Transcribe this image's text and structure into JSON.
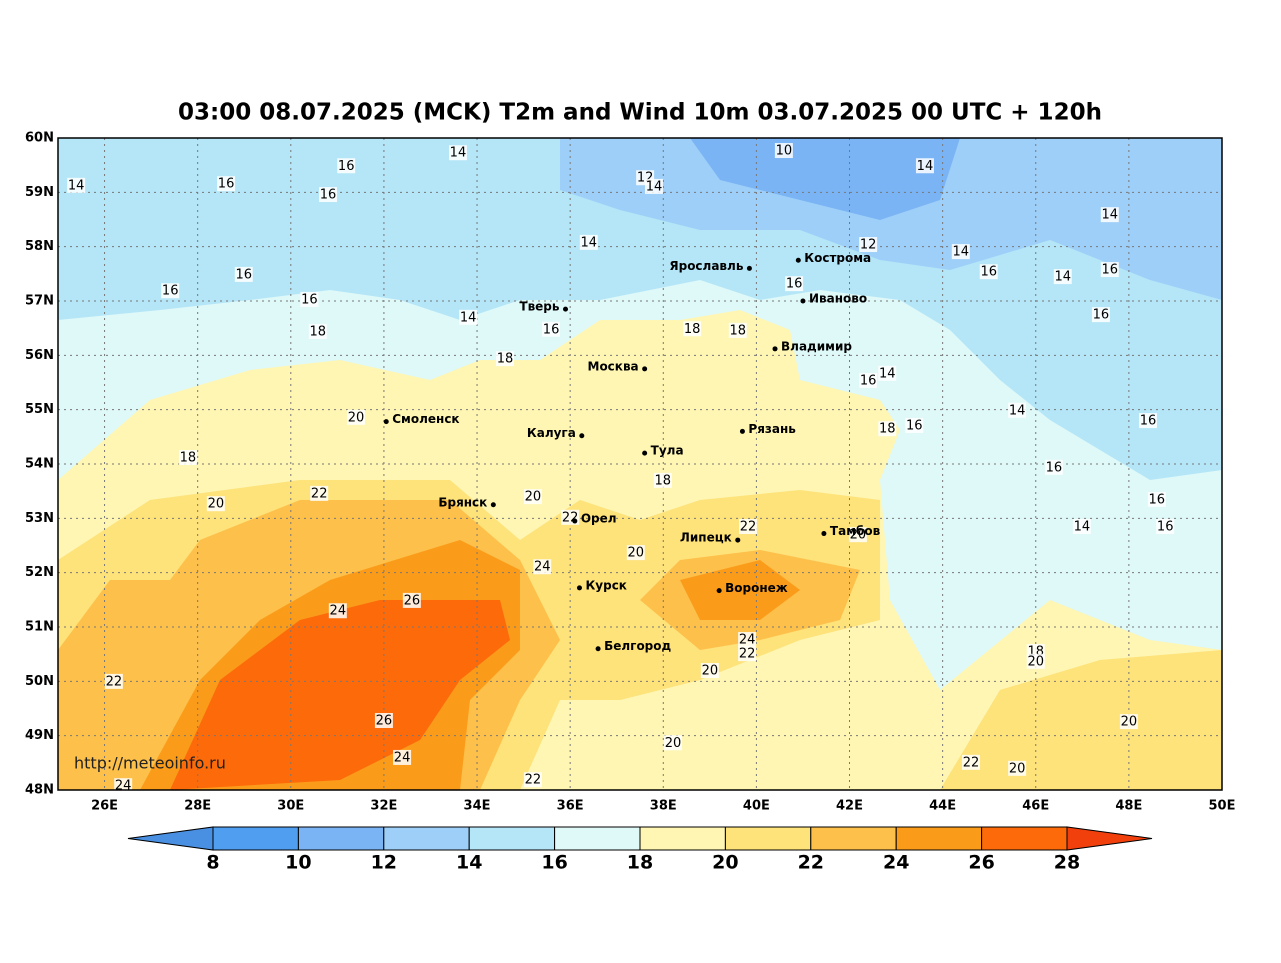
{
  "title": "03:00 08.07.2025 (MCK) T2m and Wind 10m 03.07.2025 00 UTC + 120h",
  "map": {
    "xlim": [
      25,
      50
    ],
    "ylim": [
      48,
      60
    ],
    "grid": true,
    "xticks": [
      {
        "value": 26,
        "label": "26E"
      },
      {
        "value": 28,
        "label": "28E"
      },
      {
        "value": 30,
        "label": "30E"
      },
      {
        "value": 32,
        "label": "32E"
      },
      {
        "value": 34,
        "label": "34E"
      },
      {
        "value": 36,
        "label": "36E"
      },
      {
        "value": 38,
        "label": "38E"
      },
      {
        "value": 40,
        "label": "40E"
      },
      {
        "value": 42,
        "label": "42E"
      },
      {
        "value": 44,
        "label": "44E"
      },
      {
        "value": 46,
        "label": "46E"
      },
      {
        "value": 48,
        "label": "48E"
      },
      {
        "value": 50,
        "label": "50E"
      }
    ],
    "yticks": [
      {
        "value": 60,
        "label": "60N"
      },
      {
        "value": 59,
        "label": "59N"
      },
      {
        "value": 58,
        "label": "58N"
      },
      {
        "value": 57,
        "label": "57N"
      },
      {
        "value": 56,
        "label": "56N"
      },
      {
        "value": 55,
        "label": "55N"
      },
      {
        "value": 54,
        "label": "54N"
      },
      {
        "value": 53,
        "label": "53N"
      },
      {
        "value": 52,
        "label": "52N"
      },
      {
        "value": 51,
        "label": "51N"
      },
      {
        "value": 50,
        "label": "50N"
      },
      {
        "value": 49,
        "label": "49N"
      },
      {
        "value": 48,
        "label": "48N"
      }
    ]
  },
  "cities": [
    {
      "name": "Тверь",
      "lon": 35.9,
      "lat": 56.85
    },
    {
      "name": "Ярославль",
      "lon": 39.85,
      "lat": 57.6
    },
    {
      "name": "Кострома",
      "lon": 40.9,
      "lat": 57.75
    },
    {
      "name": "Иваново",
      "lon": 41.0,
      "lat": 57.0
    },
    {
      "name": "Владимир",
      "lon": 40.4,
      "lat": 56.12
    },
    {
      "name": "Москва",
      "lon": 37.6,
      "lat": 55.75
    },
    {
      "name": "Смоленск",
      "lon": 32.05,
      "lat": 54.78
    },
    {
      "name": "Калуга",
      "lon": 36.25,
      "lat": 54.52
    },
    {
      "name": "Рязань",
      "lon": 39.7,
      "lat": 54.6
    },
    {
      "name": "Тула",
      "lon": 37.6,
      "lat": 54.2
    },
    {
      "name": "Брянск",
      "lon": 34.35,
      "lat": 53.25
    },
    {
      "name": "Орел",
      "lon": 36.1,
      "lat": 52.95
    },
    {
      "name": "Липецк",
      "lon": 39.6,
      "lat": 52.6
    },
    {
      "name": "Тамбов",
      "lon": 41.45,
      "lat": 52.72
    },
    {
      "name": "Курск",
      "lon": 36.2,
      "lat": 51.72
    },
    {
      "name": "Воронеж",
      "lon": 39.2,
      "lat": 51.67
    },
    {
      "name": "Белгород",
      "lon": 36.6,
      "lat": 50.6
    }
  ],
  "contour_labels": [
    {
      "value": 14,
      "lon": 25.39,
      "lat": 59.12
    },
    {
      "value": 16,
      "lon": 31.19,
      "lat": 59.48
    },
    {
      "value": 14,
      "lon": 33.59,
      "lat": 59.72
    },
    {
      "value": 10,
      "lon": 40.59,
      "lat": 59.76
    },
    {
      "value": 14,
      "lon": 43.62,
      "lat": 59.48
    },
    {
      "value": 12,
      "lon": 37.61,
      "lat": 59.26
    },
    {
      "value": 14,
      "lon": 37.8,
      "lat": 59.1
    },
    {
      "value": 16,
      "lon": 28.61,
      "lat": 59.15
    },
    {
      "value": 16,
      "lon": 30.8,
      "lat": 58.95
    },
    {
      "value": 14,
      "lon": 36.4,
      "lat": 58.07
    },
    {
      "value": 12,
      "lon": 42.4,
      "lat": 58.03
    },
    {
      "value": 14,
      "lon": 47.59,
      "lat": 58.58
    },
    {
      "value": 16,
      "lon": 28.99,
      "lat": 57.48
    },
    {
      "value": 16,
      "lon": 27.41,
      "lat": 57.18
    },
    {
      "value": 16,
      "lon": 30.4,
      "lat": 57.02
    },
    {
      "value": 18,
      "lon": 30.58,
      "lat": 56.43
    },
    {
      "value": 14,
      "lon": 33.81,
      "lat": 56.69
    },
    {
      "value": 18,
      "lon": 34.6,
      "lat": 55.93
    },
    {
      "value": 20,
      "lon": 31.4,
      "lat": 54.85
    },
    {
      "value": 18,
      "lon": 27.79,
      "lat": 54.11
    },
    {
      "value": 20,
      "lon": 28.39,
      "lat": 53.26
    },
    {
      "value": 22,
      "lon": 30.61,
      "lat": 53.45
    },
    {
      "value": 20,
      "lon": 35.2,
      "lat": 53.39
    },
    {
      "value": 24,
      "lon": 35.4,
      "lat": 52.1
    },
    {
      "value": 26,
      "lon": 32.6,
      "lat": 51.48
    },
    {
      "value": 24,
      "lon": 31.01,
      "lat": 51.29
    },
    {
      "value": 22,
      "lon": 26.2,
      "lat": 49.99
    },
    {
      "value": 26,
      "lon": 32.0,
      "lat": 49.27
    },
    {
      "value": 24,
      "lon": 32.39,
      "lat": 48.59
    },
    {
      "value": 22,
      "lon": 35.2,
      "lat": 48.18
    },
    {
      "value": 20,
      "lon": 38.21,
      "lat": 48.86
    },
    {
      "value": 20,
      "lon": 39.0,
      "lat": 50.19
    },
    {
      "value": 24,
      "lon": 39.8,
      "lat": 50.76
    },
    {
      "value": 22,
      "lon": 39.8,
      "lat": 50.5
    },
    {
      "value": 22,
      "lon": 39.82,
      "lat": 52.84
    },
    {
      "value": 20,
      "lon": 37.41,
      "lat": 52.36
    },
    {
      "value": 18,
      "lon": 37.99,
      "lat": 53.69
    },
    {
      "value": 18,
      "lon": 39.6,
      "lat": 56.45
    },
    {
      "value": 18,
      "lon": 38.62,
      "lat": 56.48
    },
    {
      "value": 16,
      "lon": 35.59,
      "lat": 56.47
    },
    {
      "value": 16,
      "lon": 40.81,
      "lat": 57.31
    },
    {
      "value": 16,
      "lon": 42.4,
      "lat": 55.53
    },
    {
      "value": 14,
      "lon": 42.81,
      "lat": 55.66
    },
    {
      "value": 18,
      "lon": 42.81,
      "lat": 54.64
    },
    {
      "value": 16,
      "lon": 43.39,
      "lat": 54.7
    },
    {
      "value": 14,
      "lon": 45.6,
      "lat": 54.98
    },
    {
      "value": 16,
      "lon": 46.39,
      "lat": 53.93
    },
    {
      "value": 14,
      "lon": 46.99,
      "lat": 52.84
    },
    {
      "value": 16,
      "lon": 48.6,
      "lat": 53.34
    },
    {
      "value": 16,
      "lon": 48.78,
      "lat": 52.84
    },
    {
      "value": 16,
      "lon": 48.41,
      "lat": 54.79
    },
    {
      "value": 16,
      "lon": 47.4,
      "lat": 56.74
    },
    {
      "value": 16,
      "lon": 47.59,
      "lat": 57.57
    },
    {
      "value": 14,
      "lon": 46.58,
      "lat": 57.44
    },
    {
      "value": 16,
      "lon": 44.99,
      "lat": 57.53
    },
    {
      "value": 14,
      "lon": 44.39,
      "lat": 57.9
    },
    {
      "value": 18,
      "lon": 46.0,
      "lat": 50.54
    },
    {
      "value": 20,
      "lon": 46.0,
      "lat": 50.36
    },
    {
      "value": 20,
      "lon": 48.0,
      "lat": 49.25
    },
    {
      "value": 22,
      "lon": 44.61,
      "lat": 48.5
    },
    {
      "value": 20,
      "lon": 45.6,
      "lat": 48.39
    },
    {
      "value": 20,
      "lon": 42.18,
      "lat": 52.69
    },
    {
      "value": 22,
      "lon": 36.0,
      "lat": 53.01
    },
    {
      "value": 24,
      "lon": 26.4,
      "lat": 48.07
    }
  ],
  "colorbar": {
    "levels": [
      8,
      10,
      12,
      14,
      16,
      18,
      20,
      22,
      24,
      26,
      28
    ],
    "colors": [
      "#4f9ef0",
      "#7ab4f5",
      "#9ecff8",
      "#b4e6f7",
      "#dff8f8",
      "#fef6b2",
      "#fee27a",
      "#fdc04a",
      "#fb9b1a",
      "#fc6a0a"
    ],
    "under_color": "#4a90e2",
    "over_color": "#f2400c"
  },
  "watermark": "http://meteoinfo.ru"
}
